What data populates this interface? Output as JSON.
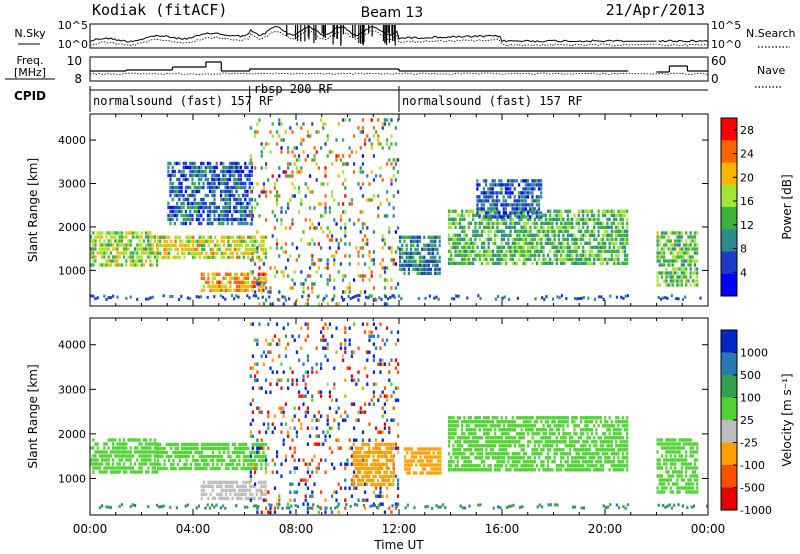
{
  "header": {
    "station": "Kodiak (fitACF)",
    "beam": "Beam 13",
    "date": "21/Apr/2013"
  },
  "top_panels": {
    "nsky_label": "N.Sky",
    "nsearch_label": "N.Search",
    "noise_ticks": [
      "10^5",
      "10^0"
    ],
    "freq_label": "Freq.",
    "freq_unit": "[MHz]",
    "freq_ticks": [
      "10",
      "8"
    ],
    "nave_label": "Nave",
    "nave_ticks": [
      "60",
      "0"
    ],
    "cpid_label": "CPID",
    "cpid_segments": [
      {
        "label": "normalsound (fast) 157 RF",
        "start": 0,
        "end": 6.2
      },
      {
        "label": "rbsp 200 RF",
        "start": 6.2,
        "end": 12
      },
      {
        "label": "normalsound (fast) 157 RF",
        "start": 12,
        "end": 24
      }
    ]
  },
  "chart_data": [
    {
      "type": "heatmap",
      "name": "power",
      "ylabel": "Slant Range [km]",
      "xlim": [
        0,
        24
      ],
      "ylim": [
        180,
        4600
      ],
      "yticks": [
        1000,
        2000,
        3000,
        4000
      ],
      "colorbar": {
        "label": "Power [dB]",
        "ticks": [
          "4",
          "8",
          "12",
          "16",
          "20",
          "24",
          "28"
        ],
        "range": [
          0,
          30
        ],
        "colors": [
          "#0000ff",
          "#1e3cc8",
          "#2d8c8c",
          "#3cb43c",
          "#a0e632",
          "#ffb400",
          "#ff6400",
          "#ff0000"
        ]
      },
      "echo_regions": [
        {
          "t0": 0.0,
          "t1": 2.6,
          "r0": 1150,
          "r1": 1900,
          "value": 16
        },
        {
          "t0": 2.6,
          "t1": 6.8,
          "r0": 1250,
          "r1": 1800,
          "value": 18
        },
        {
          "t0": 4.3,
          "t1": 6.8,
          "r0": 550,
          "r1": 950,
          "value": 22
        },
        {
          "t0": 3.0,
          "t1": 6.3,
          "r0": 2100,
          "r1": 3500,
          "value": 7
        },
        {
          "t0": 6.2,
          "t1": 12.0,
          "r0": 200,
          "r1": 4500,
          "value": 15
        },
        {
          "t0": 12.0,
          "t1": 13.6,
          "r0": 950,
          "r1": 1800,
          "value": 9
        },
        {
          "t0": 13.9,
          "t1": 20.9,
          "r0": 1150,
          "r1": 2400,
          "value": 13
        },
        {
          "t0": 15.0,
          "t1": 17.5,
          "r0": 2200,
          "r1": 3100,
          "value": 7
        },
        {
          "t0": 22.0,
          "t1": 23.6,
          "r0": 700,
          "r1": 1900,
          "value": 14
        }
      ]
    },
    {
      "type": "heatmap",
      "name": "velocity",
      "xlabel": "Time UT",
      "ylabel": "Slant Range [km]",
      "xlim": [
        0,
        24
      ],
      "ylim": [
        180,
        4600
      ],
      "xticks": [
        "00:00",
        "04:00",
        "08:00",
        "12:00",
        "16:00",
        "20:00",
        "00:00"
      ],
      "yticks": [
        1000,
        2000,
        3000,
        4000
      ],
      "colorbar": {
        "label": "Velocity [m s⁻¹]",
        "ticks": [
          "1000",
          "500",
          "100",
          "25",
          "-25",
          "-100",
          "-500",
          "-1000"
        ],
        "colors": [
          "#0028c8",
          "#2878b4",
          "#32a050",
          "#50d232",
          "#bebebe",
          "#ffa000",
          "#ff5000",
          "#e60000"
        ]
      },
      "echo_regions": [
        {
          "t0": 0.0,
          "t1": 2.6,
          "r0": 1150,
          "r1": 1900,
          "value": 0
        },
        {
          "t0": 2.6,
          "t1": 6.8,
          "r0": 1250,
          "r1": 1800,
          "value": 0
        },
        {
          "t0": 4.3,
          "t1": 6.8,
          "r0": 550,
          "r1": 950,
          "value": -60
        },
        {
          "t0": 6.2,
          "t1": 12.0,
          "r0": 200,
          "r1": 4500,
          "value": 300
        },
        {
          "t0": 10.2,
          "t1": 11.8,
          "r0": 900,
          "r1": 1800,
          "value": -300
        },
        {
          "t0": 12.2,
          "t1": 13.6,
          "r0": 1100,
          "r1": 1700,
          "value": -400
        },
        {
          "t0": 13.9,
          "t1": 20.9,
          "r0": 1150,
          "r1": 2400,
          "value": 0
        },
        {
          "t0": 22.0,
          "t1": 23.6,
          "r0": 700,
          "r1": 1900,
          "value": 0
        }
      ]
    }
  ]
}
